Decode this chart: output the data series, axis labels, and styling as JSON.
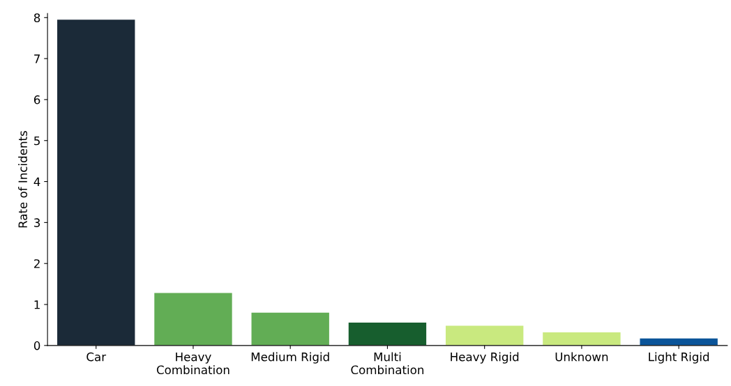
{
  "chart_data": {
    "type": "bar",
    "ylabel": "Rate of Incidents",
    "categories": [
      "Car",
      "Heavy\nCombination",
      "Medium Rigid",
      "Multi\nCombination",
      "Heavy Rigid",
      "Unknown",
      "Light Rigid"
    ],
    "values": [
      7.95,
      1.28,
      0.8,
      0.56,
      0.48,
      0.32,
      0.17
    ],
    "colors": [
      "#1b2a38",
      "#62ad55",
      "#62ad55",
      "#175e2e",
      "#c9e97f",
      "#c9e97f",
      "#0a5499"
    ],
    "ylim": [
      0,
      8.1
    ],
    "yticks": [
      0,
      1,
      2,
      3,
      4,
      5,
      6,
      7,
      8
    ],
    "grid": false
  }
}
